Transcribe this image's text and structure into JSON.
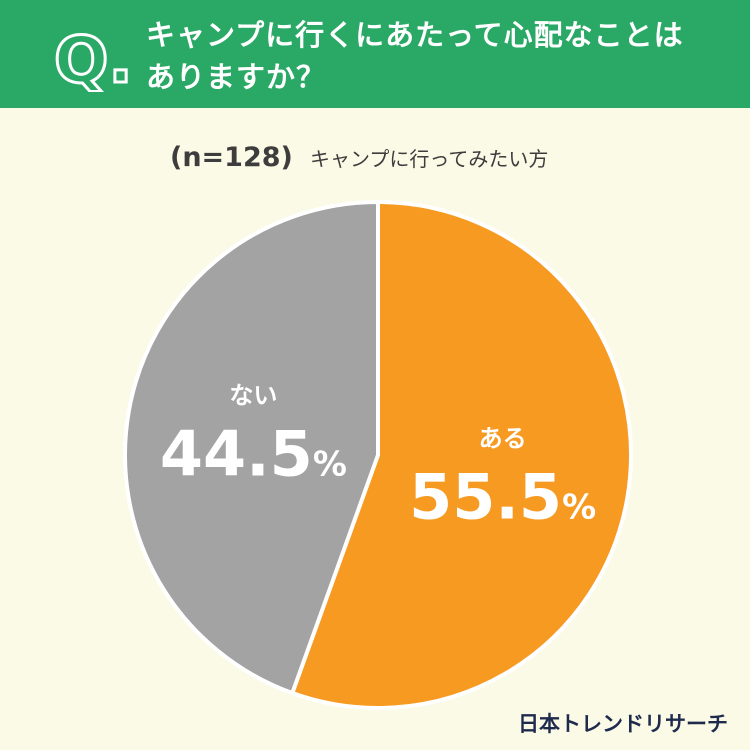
{
  "question": {
    "badge": "Q.",
    "line1": "キャンプに行くにあたって心配なことは",
    "line2": "ありますか？"
  },
  "sample": {
    "n_label": "(n=128)",
    "description": "キャンプに行ってみたい方"
  },
  "colors": {
    "header": "#2aa866",
    "background": "#fbfae6",
    "yes": "#f79a22",
    "no": "#a3a3a3"
  },
  "chart_data": {
    "type": "pie",
    "slices": [
      {
        "label": "ある",
        "value": 55.5,
        "display": "55.5",
        "color": "#f79a22"
      },
      {
        "label": "ない",
        "value": 44.5,
        "display": "44.5",
        "color": "#a3a3a3"
      }
    ],
    "unit": "%",
    "start": "12 o'clock",
    "direction": "clockwise"
  },
  "footer": {
    "brand": "日本トレンドリサーチ"
  }
}
